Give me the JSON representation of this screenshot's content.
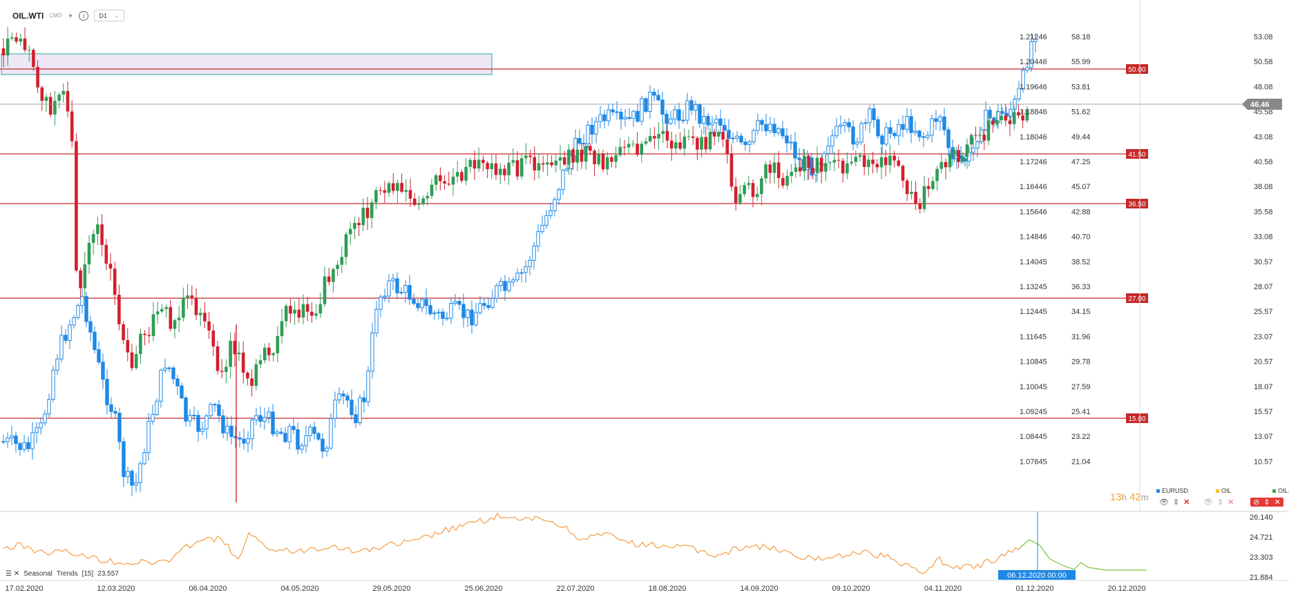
{
  "toolbar": {
    "symbol": "OIL.WTI",
    "cmd": "CMD",
    "timeframe": "D1"
  },
  "price_axis_eurusd": [
    "1.21246",
    "1.20446",
    "1.19646",
    "1.18846",
    "1.18046",
    "1.17246",
    "1.16446",
    "1.15646",
    "1.14846",
    "1.14045",
    "1.13245",
    "1.12445",
    "1.11645",
    "1.10845",
    "1.10045",
    "1.09245",
    "1.08445",
    "1.07645"
  ],
  "price_axis_oil": [
    "58.18",
    "55.99",
    "53.81",
    "51.62",
    "49.44",
    "47.25",
    "45.07",
    "42.88",
    "40.70",
    "38.52",
    "36.33",
    "34.15",
    "31.96",
    "29.78",
    "27.59",
    "25.41",
    "23.22",
    "21.04"
  ],
  "price_axis_oilwti": [
    "53.08",
    "50.58",
    "48.08",
    "45.58",
    "43.08",
    "40.58",
    "38.08",
    "35.58",
    "33.08",
    "30.57",
    "28.07",
    "25.57",
    "23.07",
    "20.57",
    "18.07",
    "15.57",
    "13.07",
    "10.57"
  ],
  "current_price": "46.46",
  "levels": [
    "50.00",
    "41.50",
    "36.50",
    "27.00",
    "15.00"
  ],
  "date_axis": [
    "17.02.2020",
    "12.03.2020",
    "06.04.2020",
    "04.05.2020",
    "29.05.2020",
    "25.06.2020",
    "22.07.2020",
    "18.08.2020",
    "14.09.2020",
    "09.10.2020",
    "04.11.2020",
    "01.12.2020",
    "20.12.2020"
  ],
  "crosshair_date": "06.12.2020 00:00",
  "legend": [
    {
      "name": "EURUSD",
      "color": "#1e88e5"
    },
    {
      "name": "OIL",
      "color": "#f5c02c"
    },
    {
      "name": "OIL.WT..",
      "color": "#43a047"
    }
  ],
  "timer": {
    "hours": "13",
    "h": "h",
    "minutes": "42",
    "m": "m"
  },
  "indicator": {
    "name": "Seasonal",
    "label": "Trends",
    "period": "[15]",
    "value": "23.557",
    "axis": [
      "26.140",
      "24.721",
      "23.303",
      "21.884"
    ]
  },
  "colors": {
    "up_green": "#2e9d56",
    "down_red": "#d21f2c",
    "eurusd_blue": "#1e88e5",
    "level_red": "#c62828",
    "seasonal_orange": "#f59c42",
    "seasonal_green": "#7cc43a"
  }
}
